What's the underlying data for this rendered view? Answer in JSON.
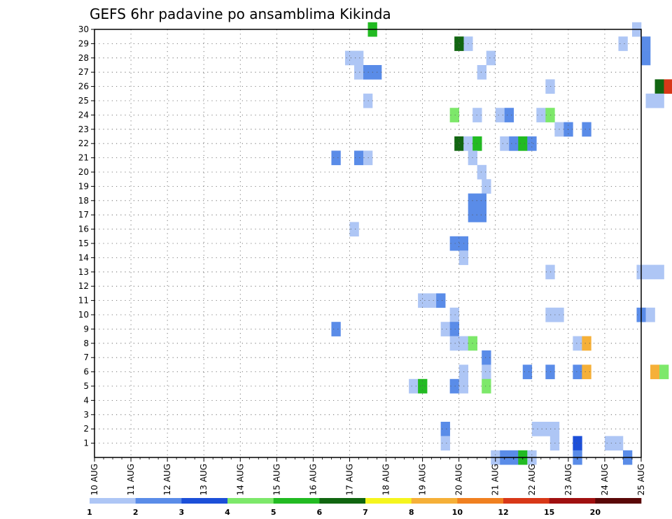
{
  "chart_data": {
    "type": "heatmap",
    "title": "GEFS 6hr padavine po ansamblima Kikinda",
    "xlabel": "",
    "ylabel": "",
    "x_tick_labels": [
      "10 AUG",
      "11 AUG",
      "12 AUG",
      "13 AUG",
      "14 AUG",
      "15 AUG",
      "16 AUG",
      "17 AUG",
      "18 AUG",
      "19 AUG",
      "20 AUG",
      "21 AUG",
      "22 AUG",
      "23 AUG",
      "24 AUG",
      "25 AUG"
    ],
    "x_step": "6h",
    "x_range_days": [
      0,
      15
    ],
    "y_tick_labels": [
      "1",
      "2",
      "3",
      "4",
      "5",
      "6",
      "7",
      "8",
      "9",
      "10",
      "11",
      "12",
      "13",
      "14",
      "15",
      "16",
      "17",
      "18",
      "19",
      "20",
      "21",
      "22",
      "23",
      "24",
      "25",
      "26",
      "27",
      "28",
      "29",
      "30"
    ],
    "y_range": [
      0,
      30
    ],
    "grid": true,
    "legend_placement": "bottom",
    "colorbar": {
      "labels": [
        "1",
        "2",
        "3",
        "4",
        "5",
        "6",
        "7",
        "8",
        "10",
        "12",
        "15",
        "20"
      ],
      "colors": [
        "#aec6f5",
        "#5a8ce8",
        "#1c4fd8",
        "#7de86a",
        "#22bb22",
        "#116611",
        "#f5f51e",
        "#f5b038",
        "#f08020",
        "#d83818",
        "#a01010",
        "#5a0808"
      ]
    },
    "cells": [
      {
        "t": 30.5,
        "m": 30,
        "c": 5
      },
      {
        "t": 41,
        "m": 29,
        "c": 1
      },
      {
        "t": 40,
        "m": 29,
        "c": 6
      },
      {
        "t": 58,
        "m": 29,
        "c": 1
      },
      {
        "t": 59.5,
        "m": 30,
        "c": 1
      },
      {
        "t": 60.5,
        "m": 29,
        "c": 2
      },
      {
        "t": 28,
        "m": 28,
        "c": 1
      },
      {
        "t": 29,
        "m": 28,
        "c": 1
      },
      {
        "t": 43.5,
        "m": 28,
        "c": 1
      },
      {
        "t": 60.5,
        "m": 28,
        "c": 2
      },
      {
        "t": 29,
        "m": 27,
        "c": 1
      },
      {
        "t": 30,
        "m": 27,
        "c": 2
      },
      {
        "t": 31,
        "m": 27,
        "c": 2
      },
      {
        "t": 42.5,
        "m": 27,
        "c": 1
      },
      {
        "t": 50,
        "m": 26,
        "c": 1
      },
      {
        "t": 62,
        "m": 26,
        "c": 6
      },
      {
        "t": 63,
        "m": 26,
        "c": 10
      },
      {
        "t": 30,
        "m": 25,
        "c": 1
      },
      {
        "t": 61,
        "m": 25,
        "c": 1
      },
      {
        "t": 62,
        "m": 25,
        "c": 1
      },
      {
        "t": 39.5,
        "m": 24,
        "c": 4
      },
      {
        "t": 42,
        "m": 24,
        "c": 1
      },
      {
        "t": 44.5,
        "m": 24,
        "c": 1
      },
      {
        "t": 45.5,
        "m": 24,
        "c": 2
      },
      {
        "t": 49,
        "m": 24,
        "c": 1
      },
      {
        "t": 50,
        "m": 24,
        "c": 4
      },
      {
        "t": 51,
        "m": 23,
        "c": 1
      },
      {
        "t": 52,
        "m": 23,
        "c": 2
      },
      {
        "t": 54,
        "m": 23,
        "c": 2
      },
      {
        "t": 40,
        "m": 22,
        "c": 6
      },
      {
        "t": 41,
        "m": 22,
        "c": 1
      },
      {
        "t": 42,
        "m": 22,
        "c": 5
      },
      {
        "t": 45,
        "m": 22,
        "c": 1
      },
      {
        "t": 46,
        "m": 22,
        "c": 2
      },
      {
        "t": 47,
        "m": 22,
        "c": 5
      },
      {
        "t": 48,
        "m": 22,
        "c": 2
      },
      {
        "t": 26.5,
        "m": 21,
        "c": 2
      },
      {
        "t": 29,
        "m": 21,
        "c": 2
      },
      {
        "t": 30,
        "m": 21,
        "c": 1
      },
      {
        "t": 41.5,
        "m": 21,
        "c": 1
      },
      {
        "t": 42.5,
        "m": 20,
        "c": 1
      },
      {
        "t": 43,
        "m": 19,
        "c": 1
      },
      {
        "t": 41.5,
        "m": 18,
        "c": 2
      },
      {
        "t": 42.5,
        "m": 18,
        "c": 2
      },
      {
        "t": 41.5,
        "m": 17,
        "c": 2
      },
      {
        "t": 42.5,
        "m": 17,
        "c": 2
      },
      {
        "t": 28.5,
        "m": 16,
        "c": 1
      },
      {
        "t": 39.5,
        "m": 15,
        "c": 2
      },
      {
        "t": 40.5,
        "m": 15,
        "c": 2
      },
      {
        "t": 40.5,
        "m": 14,
        "c": 1
      },
      {
        "t": 50,
        "m": 13,
        "c": 1
      },
      {
        "t": 60,
        "m": 13,
        "c": 1
      },
      {
        "t": 61,
        "m": 13,
        "c": 1
      },
      {
        "t": 62,
        "m": 13,
        "c": 1
      },
      {
        "t": 36,
        "m": 11,
        "c": 1
      },
      {
        "t": 37,
        "m": 11,
        "c": 1
      },
      {
        "t": 38,
        "m": 11,
        "c": 2
      },
      {
        "t": 39.5,
        "m": 10,
        "c": 1
      },
      {
        "t": 50,
        "m": 10,
        "c": 1
      },
      {
        "t": 51,
        "m": 10,
        "c": 1
      },
      {
        "t": 60,
        "m": 10,
        "c": 2
      },
      {
        "t": 61,
        "m": 10,
        "c": 1
      },
      {
        "t": 26.5,
        "m": 9,
        "c": 2
      },
      {
        "t": 38.5,
        "m": 9,
        "c": 1
      },
      {
        "t": 39.5,
        "m": 9,
        "c": 2
      },
      {
        "t": 39.5,
        "m": 8,
        "c": 1
      },
      {
        "t": 40.5,
        "m": 8,
        "c": 1
      },
      {
        "t": 41.5,
        "m": 8,
        "c": 4
      },
      {
        "t": 53,
        "m": 8,
        "c": 1
      },
      {
        "t": 54,
        "m": 8,
        "c": 8
      },
      {
        "t": 43,
        "m": 7,
        "c": 2
      },
      {
        "t": 40.5,
        "m": 6,
        "c": 1
      },
      {
        "t": 43,
        "m": 6,
        "c": 1
      },
      {
        "t": 47.5,
        "m": 6,
        "c": 2
      },
      {
        "t": 50,
        "m": 6,
        "c": 2
      },
      {
        "t": 53,
        "m": 6,
        "c": 2
      },
      {
        "t": 54,
        "m": 6,
        "c": 8
      },
      {
        "t": 61.5,
        "m": 6,
        "c": 8
      },
      {
        "t": 62.5,
        "m": 6,
        "c": 4
      },
      {
        "t": 35,
        "m": 5,
        "c": 1
      },
      {
        "t": 36,
        "m": 5,
        "c": 5
      },
      {
        "t": 39.5,
        "m": 5,
        "c": 2
      },
      {
        "t": 40.5,
        "m": 5,
        "c": 1
      },
      {
        "t": 43,
        "m": 5,
        "c": 4
      },
      {
        "t": 38.5,
        "m": 2,
        "c": 2
      },
      {
        "t": 48.5,
        "m": 2,
        "c": 1
      },
      {
        "t": 49.5,
        "m": 2,
        "c": 1
      },
      {
        "t": 50.5,
        "m": 2,
        "c": 1
      },
      {
        "t": 38.5,
        "m": 1,
        "c": 1
      },
      {
        "t": 50.5,
        "m": 1,
        "c": 1
      },
      {
        "t": 53,
        "m": 1,
        "c": 3
      },
      {
        "t": 56.5,
        "m": 1,
        "c": 1
      },
      {
        "t": 57.5,
        "m": 1,
        "c": 1
      },
      {
        "t": 44,
        "m": 0,
        "c": 1
      },
      {
        "t": 45,
        "m": 0,
        "c": 2
      },
      {
        "t": 46,
        "m": 0,
        "c": 2
      },
      {
        "t": 47,
        "m": 0,
        "c": 5
      },
      {
        "t": 48,
        "m": 0,
        "c": 1
      },
      {
        "t": 53,
        "m": 0,
        "c": 2
      },
      {
        "t": 58.5,
        "m": 0,
        "c": 2
      }
    ]
  }
}
